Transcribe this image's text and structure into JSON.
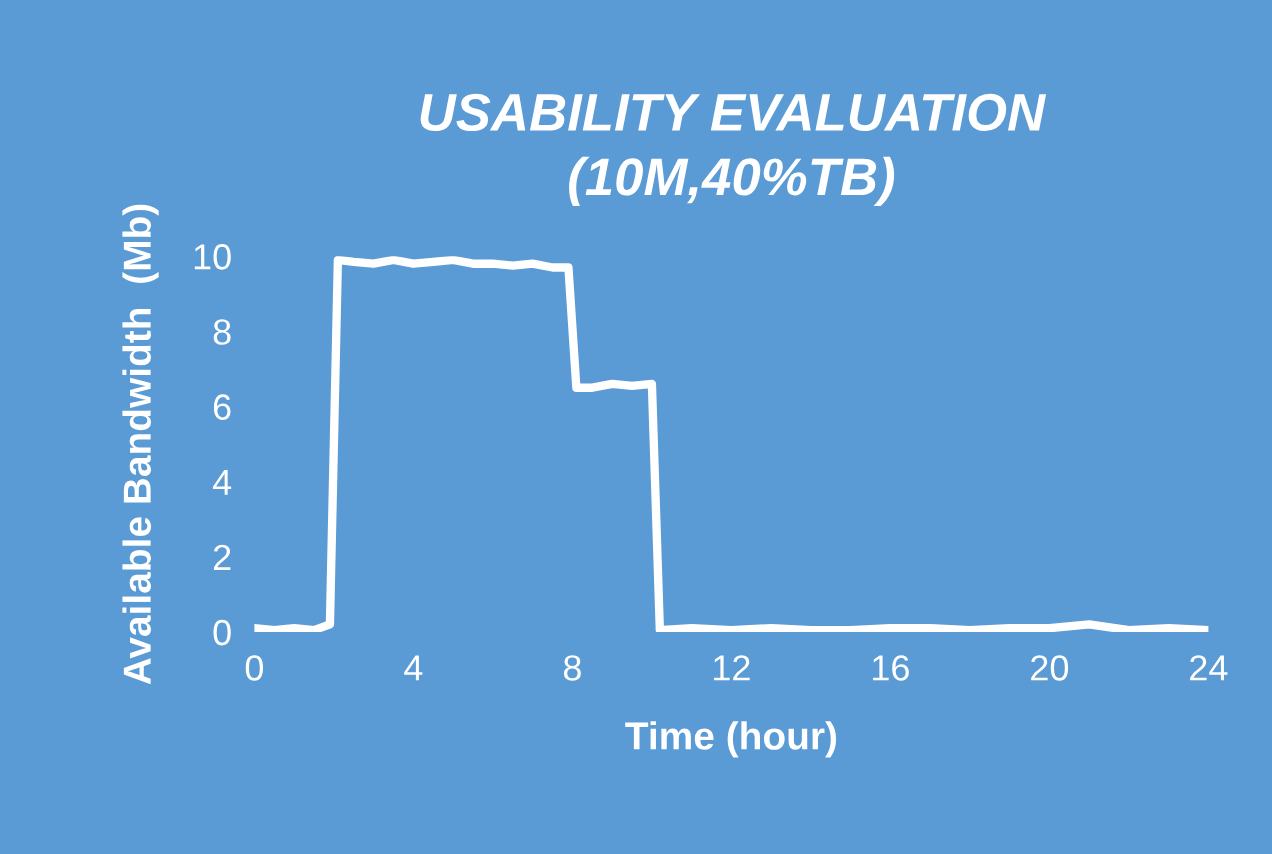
{
  "chart_data": {
    "type": "line",
    "title": "USABILITY EVALUATION\n(10M,40%TB)",
    "xlabel": "Time (hour)",
    "ylabel": "Available Bandwidth  (Mb)",
    "x": [
      0,
      0.5,
      1,
      1.5,
      1.9,
      2.1,
      2.5,
      3,
      3.5,
      4,
      4.5,
      5,
      5.5,
      6,
      6.5,
      7,
      7.5,
      7.9,
      8.1,
      8.5,
      9,
      9.5,
      10,
      10.2,
      11,
      12,
      13,
      14,
      15,
      16,
      17,
      18,
      19,
      20,
      21,
      22,
      23,
      24
    ],
    "series": [
      {
        "color": "#ffffff",
        "values": [
          0.1,
          0.05,
          0.1,
          0.05,
          0.2,
          9.9,
          9.85,
          9.8,
          9.9,
          9.8,
          9.85,
          9.9,
          9.8,
          9.8,
          9.75,
          9.8,
          9.7,
          9.7,
          6.5,
          6.5,
          6.6,
          6.55,
          6.6,
          0.05,
          0.1,
          0.05,
          0.1,
          0.05,
          0.05,
          0.1,
          0.1,
          0.05,
          0.1,
          0.1,
          0.2,
          0.05,
          0.1,
          0.05
        ]
      }
    ],
    "xlim": [
      0,
      24
    ],
    "ylim": [
      0,
      10
    ],
    "xticks": [
      0,
      4,
      8,
      12,
      16,
      20,
      24
    ],
    "yticks": [
      0,
      2,
      4,
      6,
      8,
      10
    ],
    "grid": false,
    "legend": false,
    "marker": "none",
    "line_style": "solid"
  }
}
